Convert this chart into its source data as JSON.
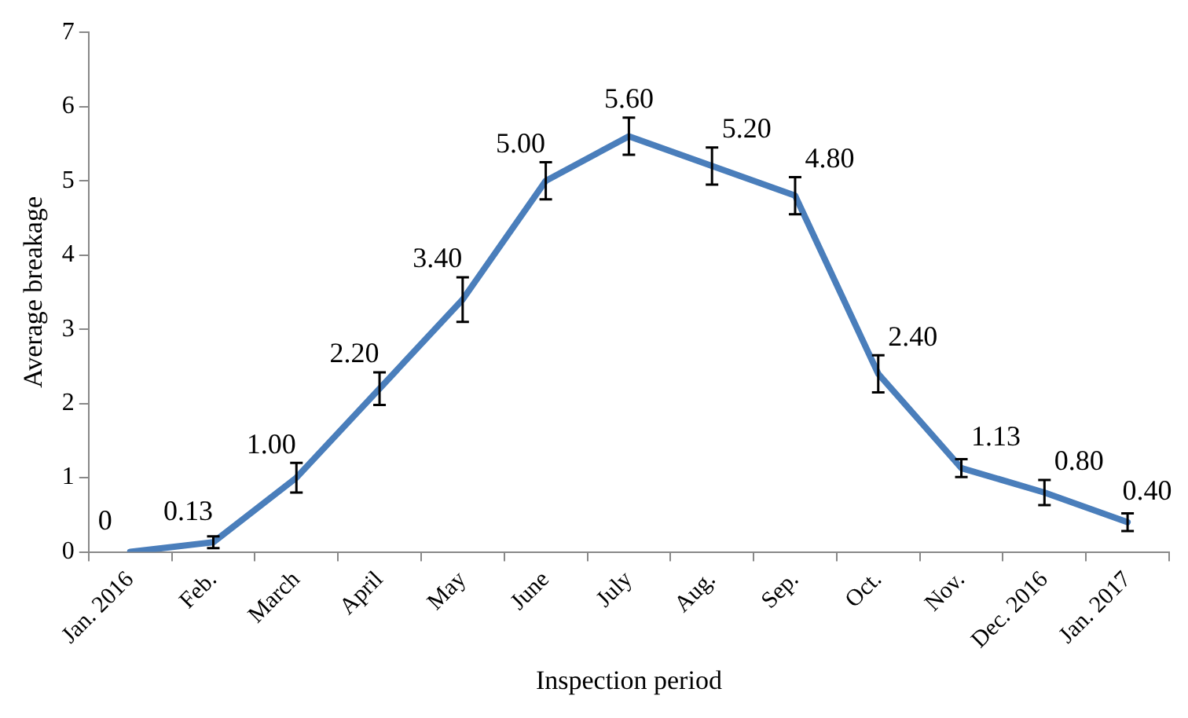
{
  "chart_data": {
    "type": "line",
    "xlabel": "Inspection period",
    "ylabel": "Average breakage",
    "categories": [
      "Jan. 2016",
      "Feb.",
      "March",
      "April",
      "May",
      "June",
      "July",
      "Aug.",
      "Sep.",
      "Oct.",
      "Nov.",
      "Dec. 2016",
      "Jan. 2017"
    ],
    "series": [
      {
        "color": "#4a7ebb",
        "values": [
          0,
          0.13,
          1.0,
          2.2,
          3.4,
          5.0,
          5.6,
          5.2,
          4.8,
          2.4,
          1.13,
          0.8,
          0.4
        ],
        "errors": [
          null,
          0.08,
          0.2,
          0.22,
          0.3,
          0.25,
          0.25,
          0.25,
          0.25,
          0.25,
          0.12,
          0.17,
          0.12
        ],
        "value_labels": [
          "0",
          "0.13",
          "1.00",
          "2.20",
          "3.40",
          "5.00",
          "5.60",
          "5.20",
          "4.80",
          "2.40",
          "1.13",
          "0.80",
          "0.40"
        ]
      }
    ],
    "ylim": [
      0,
      7
    ],
    "yticks": [
      0,
      1,
      2,
      3,
      4,
      5,
      6,
      7
    ],
    "grid": false,
    "legend": false,
    "marker": "none",
    "line_style": "solid"
  }
}
